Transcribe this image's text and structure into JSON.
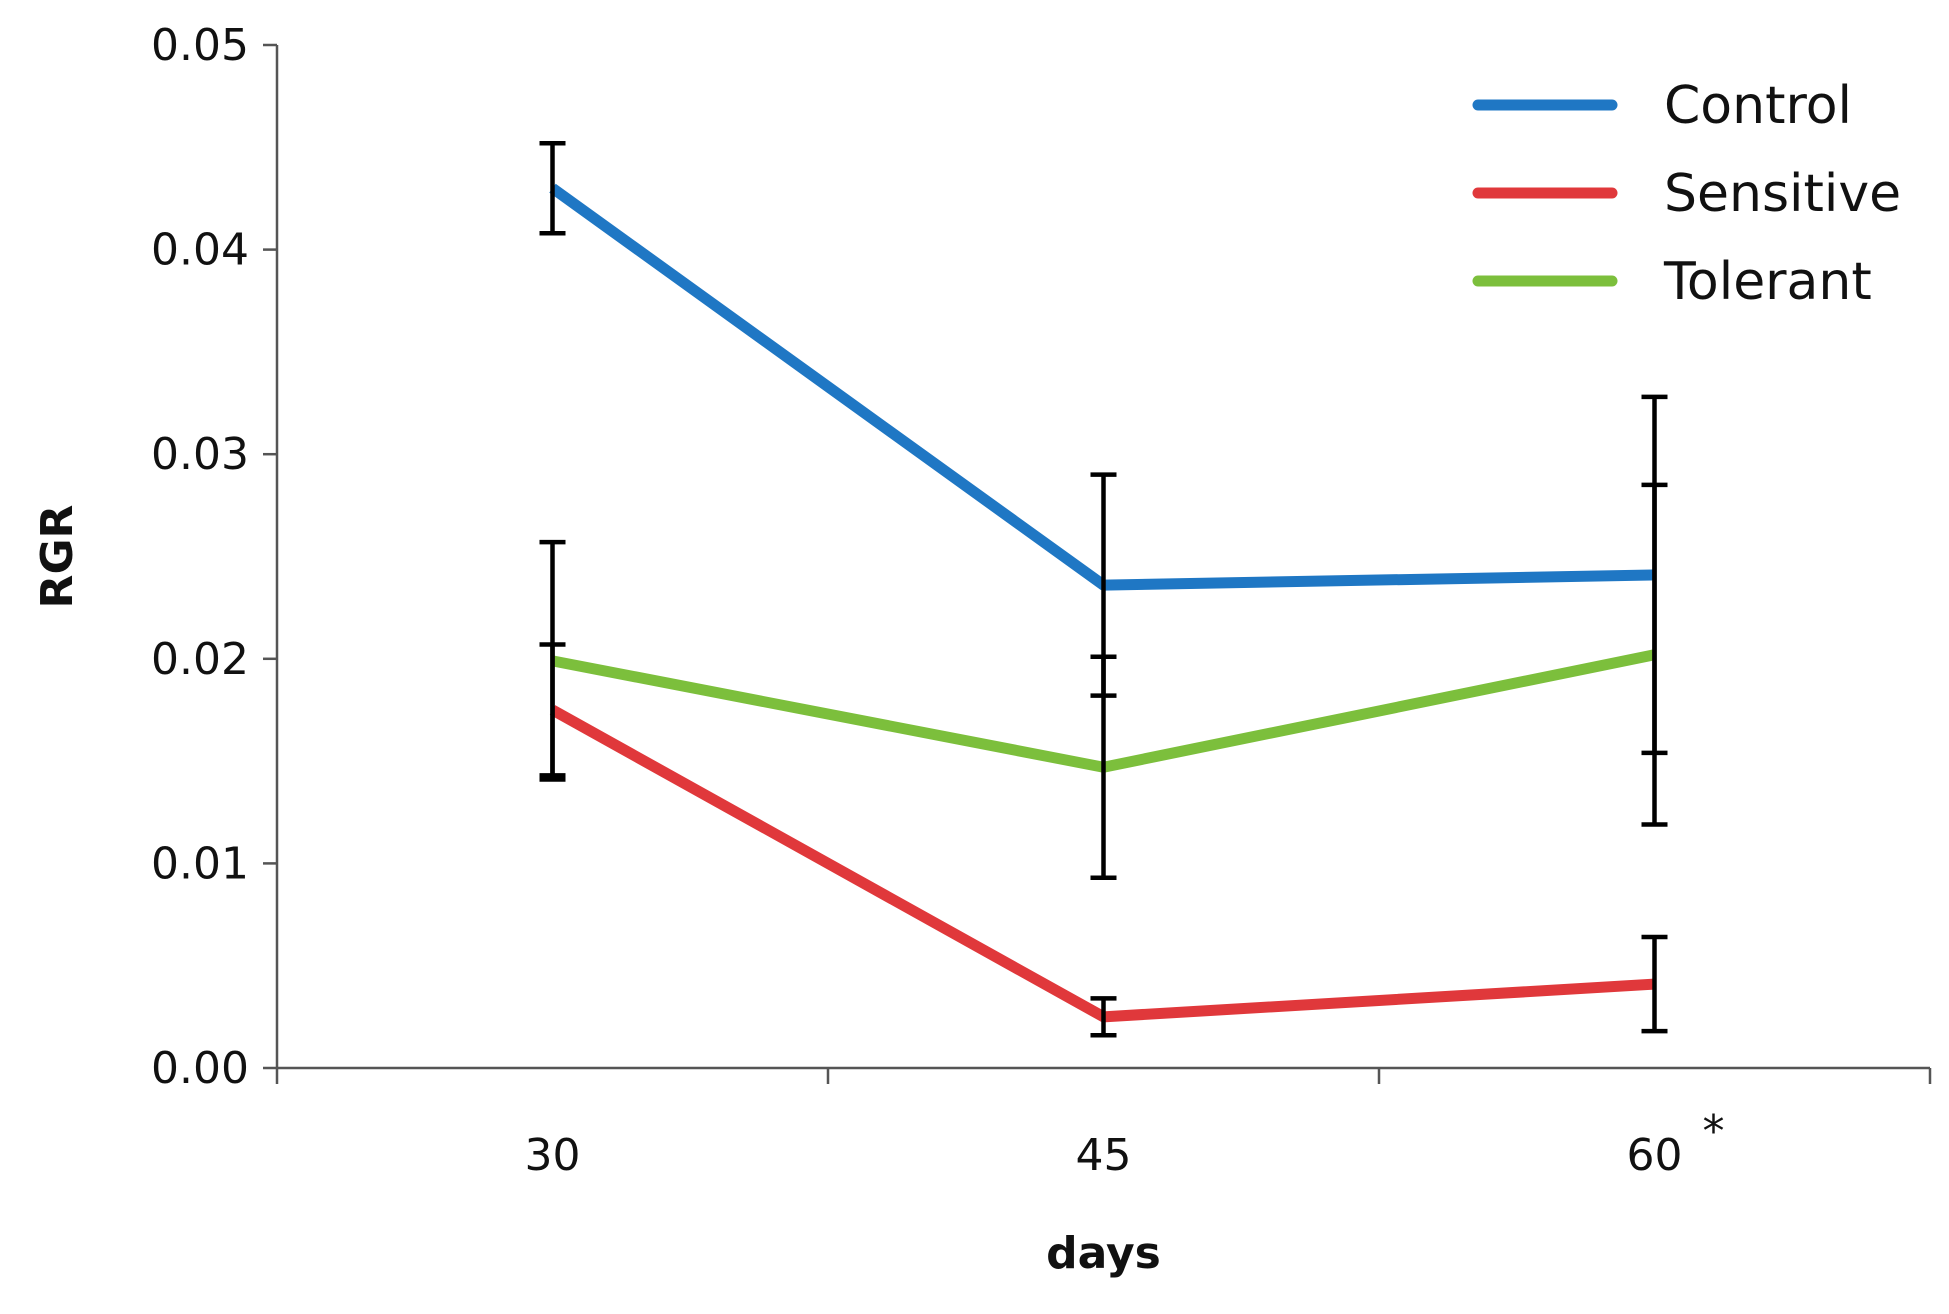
{
  "chart_data": {
    "type": "line",
    "title": "",
    "xlabel": "days",
    "ylabel": "RGR",
    "categories": [
      "30",
      "45",
      "60"
    ],
    "category_note": "*",
    "ylim": [
      0,
      0.05
    ],
    "yticks": [
      0.0,
      0.01,
      0.02,
      0.03,
      0.04,
      0.05
    ],
    "ytick_labels": [
      "0.00",
      "0.01",
      "0.02",
      "0.03",
      "0.04",
      "0.05"
    ],
    "grid": false,
    "legend_position": "top-right",
    "series": [
      {
        "name": "Control",
        "color": "#1f77c4",
        "values": [
          0.043,
          0.0236,
          0.0241
        ],
        "errors": [
          0.0022,
          0.0054,
          0.0087
        ]
      },
      {
        "name": "Sensitive",
        "color": "#e0383b",
        "values": [
          0.0175,
          0.0025,
          0.0041
        ],
        "errors": [
          0.0032,
          0.0009,
          0.0023
        ]
      },
      {
        "name": "Tolerant",
        "color": "#7cbf3c",
        "values": [
          0.0199,
          0.0147,
          0.0202
        ],
        "errors": [
          0.0058,
          0.0054,
          0.0083
        ]
      }
    ]
  }
}
